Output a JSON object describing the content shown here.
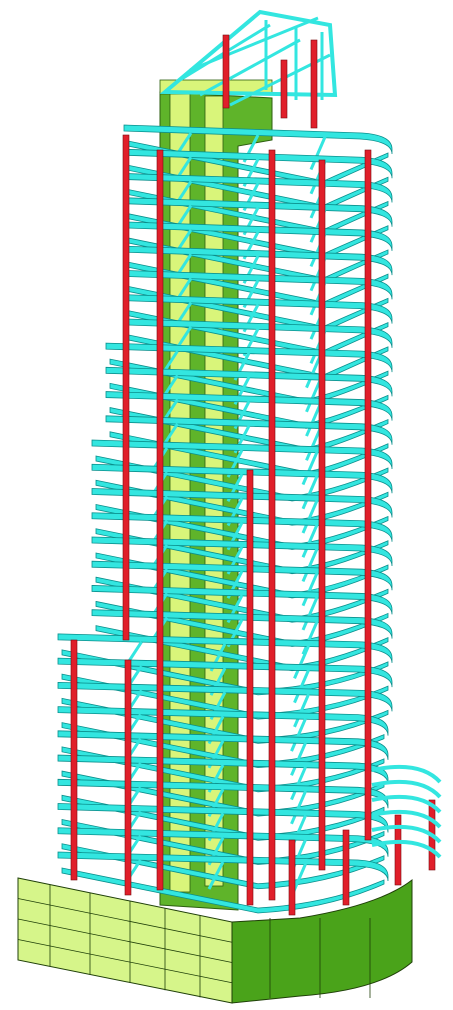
{
  "model": {
    "floor_count": 31,
    "colors": {
      "beam": "#33e6e0",
      "beam_edge": "#0a8f8c",
      "column": "#e01f2a",
      "column_edge": "#7a0a10",
      "core_wall": "#5fb42a",
      "core_wall_light": "#d9f57a",
      "core_wall_edge": "#2d5e10",
      "podium_wall_light": "#d6f58a",
      "podium_wall_dark": "#4aa31a",
      "podium_edge": "#1f3f08",
      "background": "#ffffff"
    },
    "elements": [
      "floor-slab-frames",
      "columns",
      "core-walls",
      "podium-wall",
      "roof-truss"
    ]
  }
}
